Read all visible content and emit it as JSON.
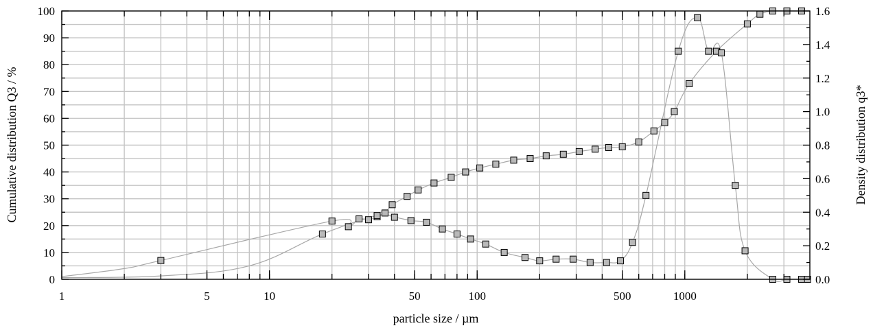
{
  "chart_data": {
    "type": "scatter",
    "title": "",
    "xlabel": "particle size / µm",
    "ylabel_left": "Cumulative distribution Q3 / %",
    "ylabel_right": "Density distribution q3*",
    "x_scale": "log",
    "xlim": [
      1,
      4000
    ],
    "ylim_left": [
      0,
      100
    ],
    "ylim_right": [
      0,
      1.6
    ],
    "grid": true,
    "legend": "none",
    "x_ticks": [
      {
        "value": 1,
        "label": "1"
      },
      {
        "value": 5,
        "label": "5"
      },
      {
        "value": 10,
        "label": "10"
      },
      {
        "value": 50,
        "label": "50"
      },
      {
        "value": 100,
        "label": "100"
      },
      {
        "value": 500,
        "label": "500"
      },
      {
        "value": 1000,
        "label": "1000"
      }
    ],
    "y_left_ticks": [
      {
        "value": 0,
        "label": "0"
      },
      {
        "value": 10,
        "label": "10"
      },
      {
        "value": 20,
        "label": "20"
      },
      {
        "value": 30,
        "label": "30"
      },
      {
        "value": 40,
        "label": "40"
      },
      {
        "value": 50,
        "label": "50"
      },
      {
        "value": 60,
        "label": "60"
      },
      {
        "value": 70,
        "label": "70"
      },
      {
        "value": 80,
        "label": "80"
      },
      {
        "value": 90,
        "label": "90"
      },
      {
        "value": 100,
        "label": "100"
      }
    ],
    "y_right_ticks": [
      {
        "value": 0,
        "label": "0.0"
      },
      {
        "value": 0.2,
        "label": "0.2"
      },
      {
        "value": 0.4,
        "label": "0.4"
      },
      {
        "value": 0.6,
        "label": "0.6"
      },
      {
        "value": 0.8,
        "label": "0.8"
      },
      {
        "value": 1.0,
        "label": "1.0"
      },
      {
        "value": 1.2,
        "label": "1.2"
      },
      {
        "value": 1.4,
        "label": "1.4"
      },
      {
        "value": 1.6,
        "label": "1.6"
      }
    ],
    "colors": {
      "curve": "#a8a8a8",
      "marker_fill": "#b9b9b9",
      "grid": "#c4c4c4",
      "axis": "#000000"
    },
    "series": [
      {
        "axis": "left",
        "x": [
          3,
          20,
          24,
          27,
          30,
          33,
          36,
          39,
          46,
          52,
          62,
          75,
          88,
          103,
          123,
          150,
          180,
          215,
          260,
          310,
          370,
          430,
          500,
          600,
          710,
          800,
          890,
          1050,
          1420,
          2000,
          2300,
          2650,
          3100,
          3650
        ],
        "y": [
          7,
          21.7,
          19.6,
          22.5,
          22.2,
          23.3,
          24.7,
          27.8,
          30.9,
          33.3,
          35.9,
          38,
          40,
          41.5,
          42.9,
          44.4,
          45,
          46,
          46.6,
          47.6,
          48.5,
          49.1,
          49.4,
          51.2,
          55.3,
          58.4,
          62.5,
          72.9,
          85,
          95.2,
          98.8,
          100,
          100,
          100
        ]
      },
      {
        "axis": "right",
        "x": [
          18,
          33,
          40,
          48,
          57,
          68,
          80,
          93,
          110,
          135,
          170,
          200,
          240,
          290,
          350,
          420,
          490,
          560,
          650,
          930,
          1150,
          1300,
          1500,
          1750,
          1950,
          2650,
          3100,
          3650,
          3900
        ],
        "y": [
          0.27,
          0.38,
          0.37,
          0.35,
          0.34,
          0.3,
          0.27,
          0.24,
          0.21,
          0.16,
          0.13,
          0.11,
          0.12,
          0.12,
          0.1,
          0.1,
          0.11,
          0.22,
          0.5,
          1.36,
          1.56,
          1.36,
          1.35,
          0.56,
          0.17,
          0.0,
          0.0,
          0.0,
          0.0
        ]
      }
    ]
  }
}
